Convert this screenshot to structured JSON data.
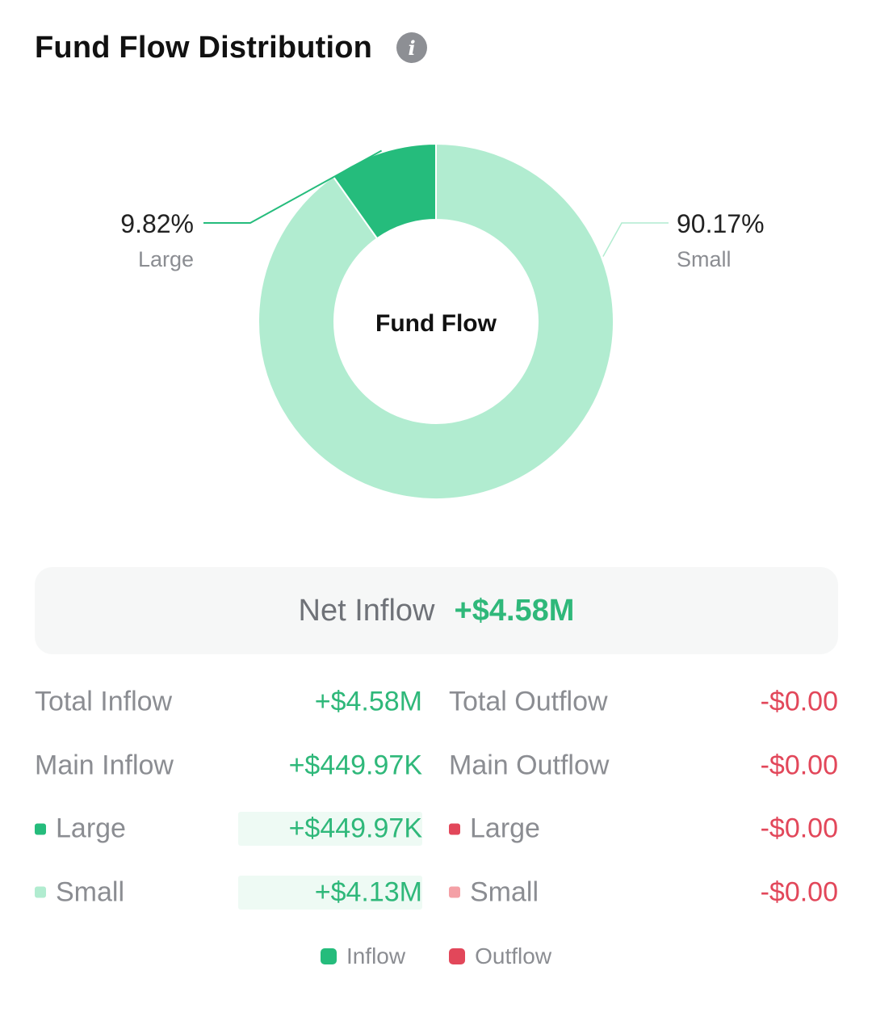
{
  "header": {
    "title": "Fund Flow Distribution",
    "info_icon": "info-icon"
  },
  "colors": {
    "inflow_large": "#25bc7c",
    "inflow_small": "#b1ecd0",
    "outflow_large": "#e2475a",
    "outflow_small": "#f4a0a6",
    "positive": "#2fb87a",
    "negative": "#e2475a"
  },
  "chart_data": {
    "type": "pie",
    "center_label": "Fund Flow",
    "slices": [
      {
        "name": "Large",
        "percent": 9.82,
        "label": "9.82%",
        "color": "#25bc7c",
        "callout_side": "left"
      },
      {
        "name": "Small",
        "percent": 90.17,
        "label": "90.17%",
        "color": "#b1ecd0",
        "callout_side": "right"
      }
    ]
  },
  "net": {
    "label": "Net Inflow",
    "value": "+$4.58M"
  },
  "rows": [
    {
      "in_label": "Total Inflow",
      "in_value": "+$4.58M",
      "out_label": "Total Outflow",
      "out_value": "-$0.00"
    },
    {
      "in_label": "Main Inflow",
      "in_value": "+$449.97K",
      "out_label": "Main Outflow",
      "out_value": "-$0.00"
    },
    {
      "in_label": "Large",
      "in_value": "+$449.97K",
      "out_label": "Large",
      "out_value": "-$0.00"
    },
    {
      "in_label": "Small",
      "in_value": "+$4.13M",
      "out_label": "Small",
      "out_value": "-$0.00"
    }
  ],
  "legend": [
    {
      "label": "Inflow",
      "color": "#25bc7c"
    },
    {
      "label": "Outflow",
      "color": "#e2475a"
    }
  ]
}
